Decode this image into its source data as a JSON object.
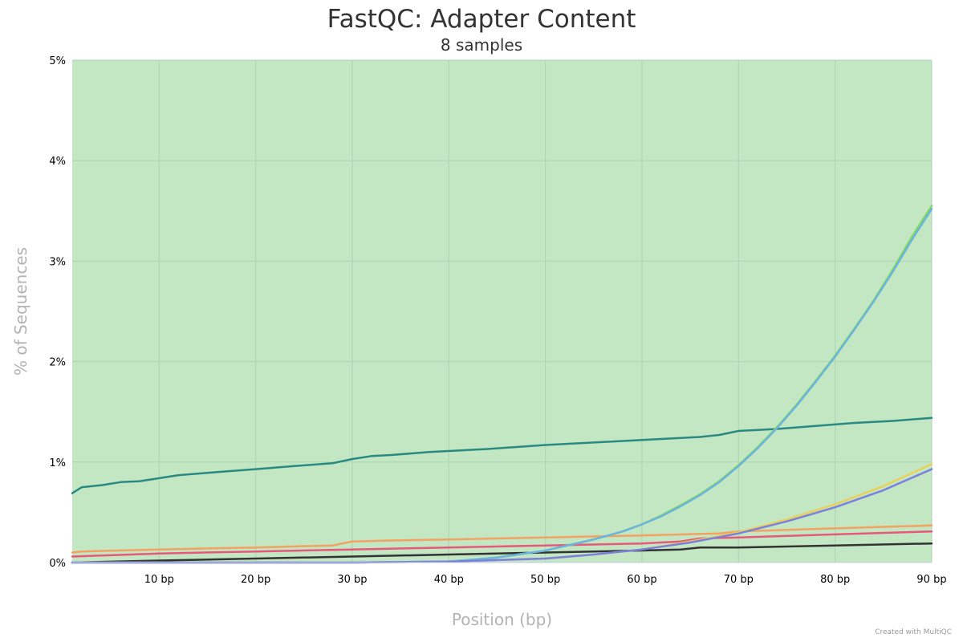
{
  "chart": {
    "title": "FastQC: Adapter Content",
    "subtitle": "8 samples",
    "credit": "Created with MultiQC",
    "background_band_color": "#c3e6c3",
    "gridline_color": "#aed3b4"
  },
  "chart_data": {
    "type": "line",
    "title": "FastQC: Adapter Content",
    "subtitle": "8 samples",
    "xlabel": "Position (bp)",
    "ylabel": "% of Sequences",
    "xlim": [
      1,
      90
    ],
    "ylim": [
      0,
      5
    ],
    "x_ticks": [
      10,
      20,
      30,
      40,
      50,
      60,
      70,
      80,
      90
    ],
    "x_tick_labels": [
      "10 bp",
      "20 bp",
      "30 bp",
      "40 bp",
      "50 bp",
      "60 bp",
      "70 bp",
      "80 bp",
      "90 bp"
    ],
    "y_ticks": [
      0,
      1,
      2,
      3,
      4,
      5
    ],
    "y_tick_labels": [
      "0%",
      "1%",
      "2%",
      "3%",
      "4%",
      "5%"
    ],
    "grid": true,
    "legend": "none",
    "series": [
      {
        "color": "#2a8a82",
        "x": [
          1,
          2,
          4,
          6,
          8,
          12,
          16,
          20,
          24,
          28,
          30,
          32,
          34,
          38,
          44,
          50,
          56,
          62,
          66,
          68,
          70,
          74,
          78,
          82,
          86,
          90
        ],
        "values": [
          0.69,
          0.75,
          0.77,
          0.8,
          0.81,
          0.87,
          0.9,
          0.93,
          0.96,
          0.99,
          1.03,
          1.06,
          1.07,
          1.1,
          1.13,
          1.17,
          1.2,
          1.23,
          1.25,
          1.27,
          1.31,
          1.33,
          1.36,
          1.39,
          1.41,
          1.44
        ]
      },
      {
        "color": "#f4a261",
        "x": [
          1,
          2,
          10,
          20,
          28,
          30,
          34,
          40,
          50,
          60,
          68,
          70,
          80,
          90
        ],
        "values": [
          0.1,
          0.11,
          0.13,
          0.15,
          0.17,
          0.21,
          0.22,
          0.23,
          0.25,
          0.27,
          0.29,
          0.31,
          0.34,
          0.37
        ]
      },
      {
        "color": "#e8587a",
        "x": [
          1,
          10,
          20,
          30,
          40,
          50,
          60,
          64,
          66,
          70,
          80,
          90
        ],
        "values": [
          0.06,
          0.09,
          0.11,
          0.13,
          0.15,
          0.17,
          0.19,
          0.21,
          0.24,
          0.25,
          0.28,
          0.31
        ]
      },
      {
        "color": "#333333",
        "x": [
          1,
          10,
          20,
          30,
          40,
          50,
          60,
          64,
          66,
          70,
          80,
          90
        ],
        "values": [
          0.0,
          0.02,
          0.04,
          0.06,
          0.08,
          0.1,
          0.12,
          0.13,
          0.15,
          0.15,
          0.17,
          0.19
        ]
      },
      {
        "color": "#7fd95b",
        "x": [
          1,
          30,
          40,
          45,
          50,
          55,
          58,
          60,
          62,
          64,
          66,
          68,
          70,
          72,
          74,
          76,
          78,
          80,
          82,
          84,
          86,
          88,
          90
        ],
        "values": [
          0.0,
          0.0,
          0.01,
          0.05,
          0.12,
          0.23,
          0.31,
          0.38,
          0.47,
          0.57,
          0.68,
          0.81,
          0.97,
          1.15,
          1.35,
          1.57,
          1.81,
          2.06,
          2.33,
          2.61,
          2.92,
          3.25,
          3.55
        ]
      },
      {
        "color": "#6cb4e0",
        "x": [
          1,
          30,
          40,
          45,
          50,
          55,
          58,
          60,
          62,
          64,
          66,
          68,
          70,
          72,
          74,
          76,
          78,
          80,
          82,
          84,
          86,
          88,
          90
        ],
        "values": [
          0.0,
          0.0,
          0.01,
          0.05,
          0.12,
          0.23,
          0.31,
          0.38,
          0.46,
          0.56,
          0.67,
          0.8,
          0.96,
          1.14,
          1.34,
          1.56,
          1.8,
          2.05,
          2.32,
          2.6,
          2.9,
          3.22,
          3.52
        ]
      },
      {
        "color": "#e8d15a",
        "x": [
          1,
          30,
          40,
          50,
          55,
          60,
          65,
          70,
          75,
          80,
          85,
          90
        ],
        "values": [
          0.0,
          0.0,
          0.01,
          0.04,
          0.08,
          0.13,
          0.21,
          0.3,
          0.43,
          0.58,
          0.76,
          0.98
        ]
      },
      {
        "color": "#7b7fe0",
        "x": [
          1,
          30,
          40,
          50,
          55,
          60,
          65,
          70,
          75,
          80,
          85,
          90
        ],
        "values": [
          0.0,
          0.0,
          0.01,
          0.04,
          0.08,
          0.13,
          0.2,
          0.29,
          0.41,
          0.55,
          0.72,
          0.93
        ]
      }
    ]
  }
}
